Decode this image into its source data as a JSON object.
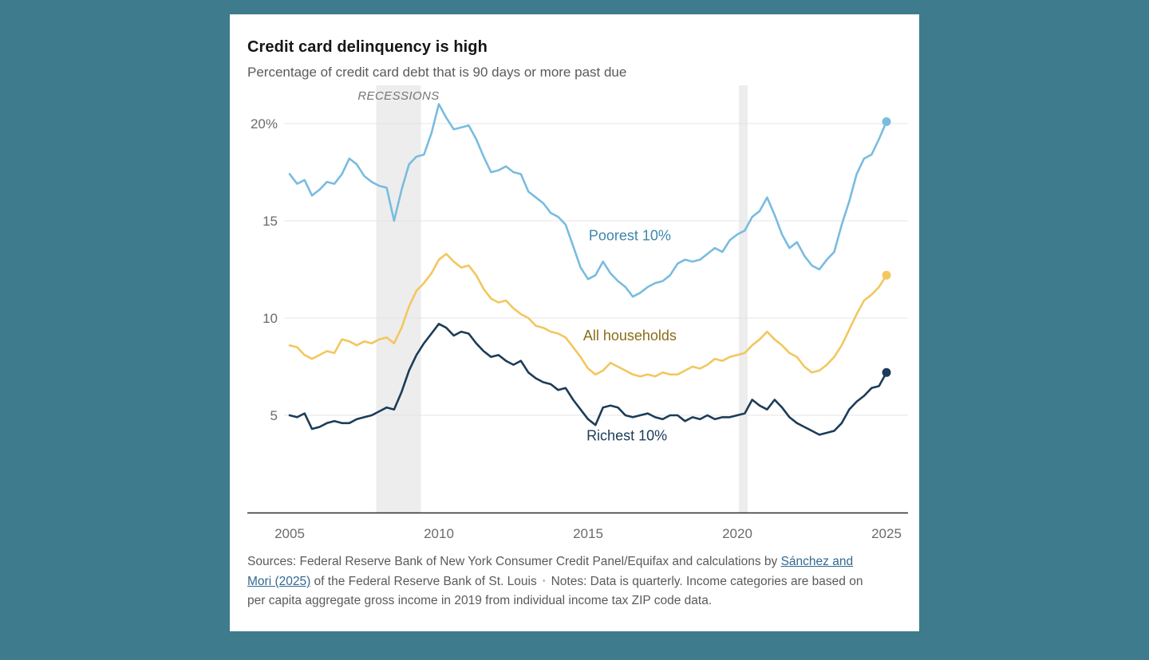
{
  "page": {
    "background": "#3e7b8c",
    "card_background": "#ffffff"
  },
  "chart_data": {
    "type": "line",
    "title": "Credit card delinquency is high",
    "subtitle": "Percentage of credit card debt that is 90 days or more past due",
    "x_start": 2005,
    "x_step": 0.25,
    "x_unit": "year (quarterly data)",
    "y_unit": "percent",
    "ylim": [
      0,
      22
    ],
    "grid": "horizontal gridlines only, bottom axis line, no legend box (direct line labels)",
    "yticks": [
      {
        "value": 20,
        "label": "20%"
      },
      {
        "value": 15,
        "label": "15"
      },
      {
        "value": 10,
        "label": "10"
      },
      {
        "value": 5,
        "label": "5"
      }
    ],
    "xticks": [
      {
        "value": 2005,
        "label": "2005"
      },
      {
        "value": 2010,
        "label": "2010"
      },
      {
        "value": 2015,
        "label": "2015"
      },
      {
        "value": 2020,
        "label": "2020"
      },
      {
        "value": 2025,
        "label": "2025"
      }
    ],
    "recessions": {
      "label": "RECESSIONS",
      "bands": [
        [
          2007.9,
          2009.4
        ],
        [
          2020.05,
          2020.35
        ]
      ]
    },
    "colors": {
      "band": "#ededed",
      "grid": "#e4e4e4",
      "axis": "#2b2b2b",
      "tick_text": "#6b6b6b",
      "recession_text": "#757575"
    },
    "series": [
      {
        "name": "Poorest 10%",
        "color": "#79bcdf",
        "label_color": "#3d86ab",
        "label_pos": [
          2016.4,
          14.0
        ],
        "values": [
          17.4,
          16.9,
          17.1,
          16.3,
          16.6,
          17.0,
          16.9,
          17.4,
          18.2,
          17.9,
          17.3,
          17.0,
          16.8,
          16.7,
          15.0,
          16.6,
          17.9,
          18.3,
          18.4,
          19.5,
          21.0,
          20.3,
          19.7,
          19.8,
          19.9,
          19.2,
          18.3,
          17.5,
          17.6,
          17.8,
          17.5,
          17.4,
          16.5,
          16.2,
          15.9,
          15.4,
          15.2,
          14.8,
          13.7,
          12.6,
          12.0,
          12.2,
          12.9,
          12.3,
          11.9,
          11.6,
          11.1,
          11.3,
          11.6,
          11.8,
          11.9,
          12.2,
          12.8,
          13.0,
          12.9,
          13.0,
          13.3,
          13.6,
          13.4,
          14.0,
          14.3,
          14.5,
          15.2,
          15.5,
          16.2,
          15.3,
          14.3,
          13.6,
          13.9,
          13.2,
          12.7,
          12.5,
          13.0,
          13.4,
          14.8,
          16.0,
          17.4,
          18.2,
          18.4,
          19.2,
          20.1
        ]
      },
      {
        "name": "All households",
        "color": "#f2c75f",
        "label_color": "#8a6d1a",
        "label_pos": [
          2016.4,
          8.85
        ],
        "values": [
          8.6,
          8.5,
          8.1,
          7.9,
          8.1,
          8.3,
          8.2,
          8.9,
          8.8,
          8.6,
          8.8,
          8.7,
          8.9,
          9.0,
          8.7,
          9.5,
          10.6,
          11.4,
          11.8,
          12.3,
          13.0,
          13.3,
          12.9,
          12.6,
          12.7,
          12.2,
          11.5,
          11.0,
          10.8,
          10.9,
          10.5,
          10.2,
          10.0,
          9.6,
          9.5,
          9.3,
          9.2,
          9.0,
          8.5,
          8.0,
          7.4,
          7.1,
          7.3,
          7.7,
          7.5,
          7.3,
          7.1,
          7.0,
          7.1,
          7.0,
          7.2,
          7.1,
          7.1,
          7.3,
          7.5,
          7.4,
          7.6,
          7.9,
          7.8,
          8.0,
          8.1,
          8.2,
          8.6,
          8.9,
          9.3,
          8.9,
          8.6,
          8.2,
          8.0,
          7.5,
          7.2,
          7.3,
          7.6,
          8.0,
          8.6,
          9.4,
          10.2,
          10.9,
          11.2,
          11.6,
          12.2
        ]
      },
      {
        "name": "Richest 10%",
        "color": "#1c3c58",
        "label_color": "#1c3c58",
        "label_pos": [
          2016.3,
          3.7
        ],
        "values": [
          5.0,
          4.9,
          5.1,
          4.3,
          4.4,
          4.6,
          4.7,
          4.6,
          4.6,
          4.8,
          4.9,
          5.0,
          5.2,
          5.4,
          5.3,
          6.2,
          7.3,
          8.1,
          8.7,
          9.2,
          9.7,
          9.5,
          9.1,
          9.3,
          9.2,
          8.7,
          8.3,
          8.0,
          8.1,
          7.8,
          7.6,
          7.8,
          7.2,
          6.9,
          6.7,
          6.6,
          6.3,
          6.4,
          5.8,
          5.3,
          4.8,
          4.5,
          5.4,
          5.5,
          5.4,
          5.0,
          4.9,
          5.0,
          5.1,
          4.9,
          4.8,
          5.0,
          5.0,
          4.7,
          4.9,
          4.8,
          5.0,
          4.8,
          4.9,
          4.9,
          5.0,
          5.1,
          5.8,
          5.5,
          5.3,
          5.8,
          5.4,
          4.9,
          4.6,
          4.4,
          4.2,
          4.0,
          4.1,
          4.2,
          4.6,
          5.3,
          5.7,
          6.0,
          6.4,
          6.5,
          7.2
        ]
      }
    ]
  },
  "footer": {
    "sources_prefix": "Sources: Federal Reserve Bank of New York Consumer Credit Panel/Equifax and calculations by ",
    "source_link": "Sánchez and Mori (2025)",
    "sources_suffix": " of the Federal Reserve Bank of St. Louis",
    "separator": "•",
    "notes": "Notes: Data is quarterly. Income categories are based on per capita aggregate gross income in 2019 from individual income tax ZIP code data."
  }
}
